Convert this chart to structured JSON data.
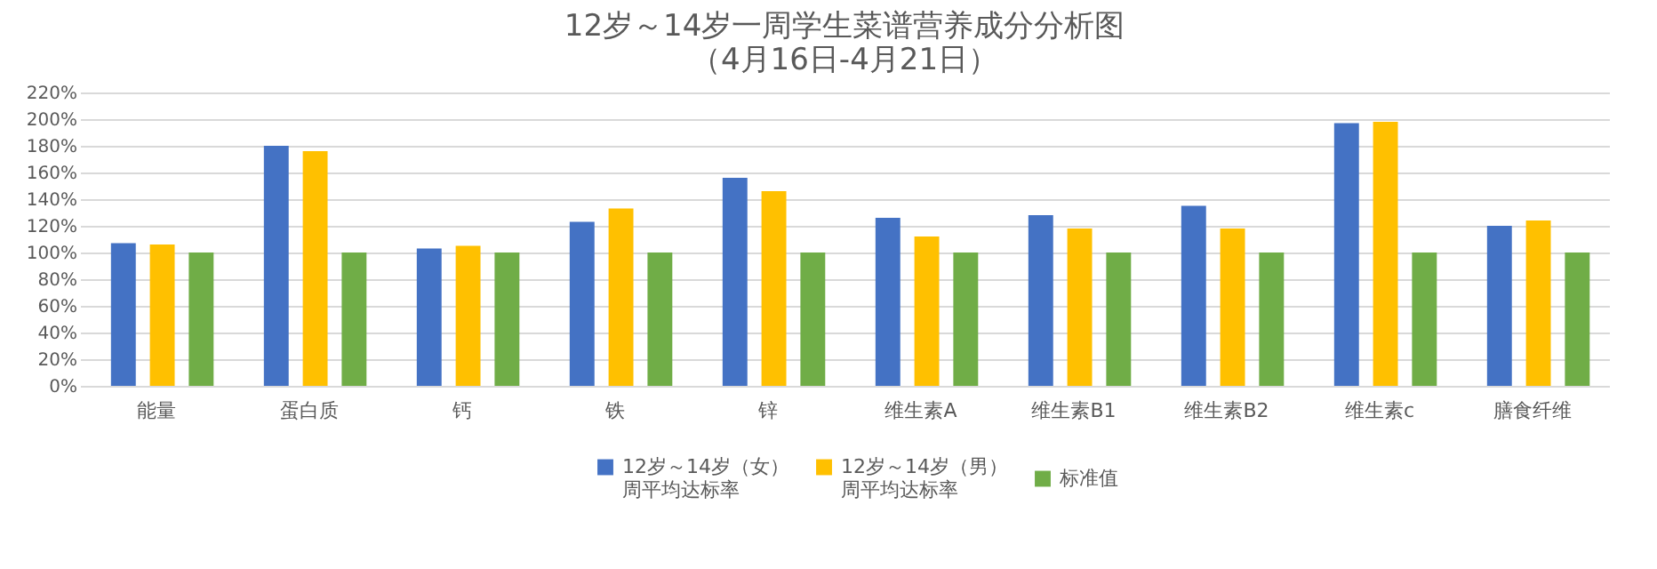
{
  "chart_data": {
    "type": "bar",
    "title": "12岁～14岁一周学生菜谱营养成分分析图",
    "subtitle": "（4月16日-4月21日）",
    "categories": [
      "能量",
      "蛋白质",
      "钙",
      "铁",
      "锌",
      "维生素A",
      "维生素B1",
      "维生素B2",
      "维生素c",
      "膳食纤维"
    ],
    "series": [
      {
        "name": "12岁～14岁（女）周平均达标率",
        "color": "#4472c4",
        "values": [
          107,
          180,
          103,
          123,
          156,
          126,
          128,
          135,
          197,
          120
        ]
      },
      {
        "name": "12岁～14岁（男）周平均达标率",
        "color": "#ffc000",
        "values": [
          106,
          176,
          105,
          133,
          146,
          112,
          118,
          118,
          198,
          124
        ]
      },
      {
        "name": "标准值",
        "color": "#70ad47",
        "values": [
          100,
          100,
          100,
          100,
          100,
          100,
          100,
          100,
          100,
          100
        ]
      }
    ],
    "ylim": [
      0,
      220
    ],
    "yticks": [
      {
        "value": 0,
        "label": "0%"
      },
      {
        "value": 20,
        "label": "20%"
      },
      {
        "value": 40,
        "label": "40%"
      },
      {
        "value": 60,
        "label": "60%"
      },
      {
        "value": 80,
        "label": "80%"
      },
      {
        "value": 100,
        "label": "100%"
      },
      {
        "value": 120,
        "label": "120%"
      },
      {
        "value": 140,
        "label": "140%"
      },
      {
        "value": 160,
        "label": "160%"
      },
      {
        "value": 180,
        "label": "180%"
      },
      {
        "value": 200,
        "label": "200%"
      },
      {
        "value": 220,
        "label": "220%"
      }
    ],
    "grid": "y",
    "legend": "bottom"
  }
}
